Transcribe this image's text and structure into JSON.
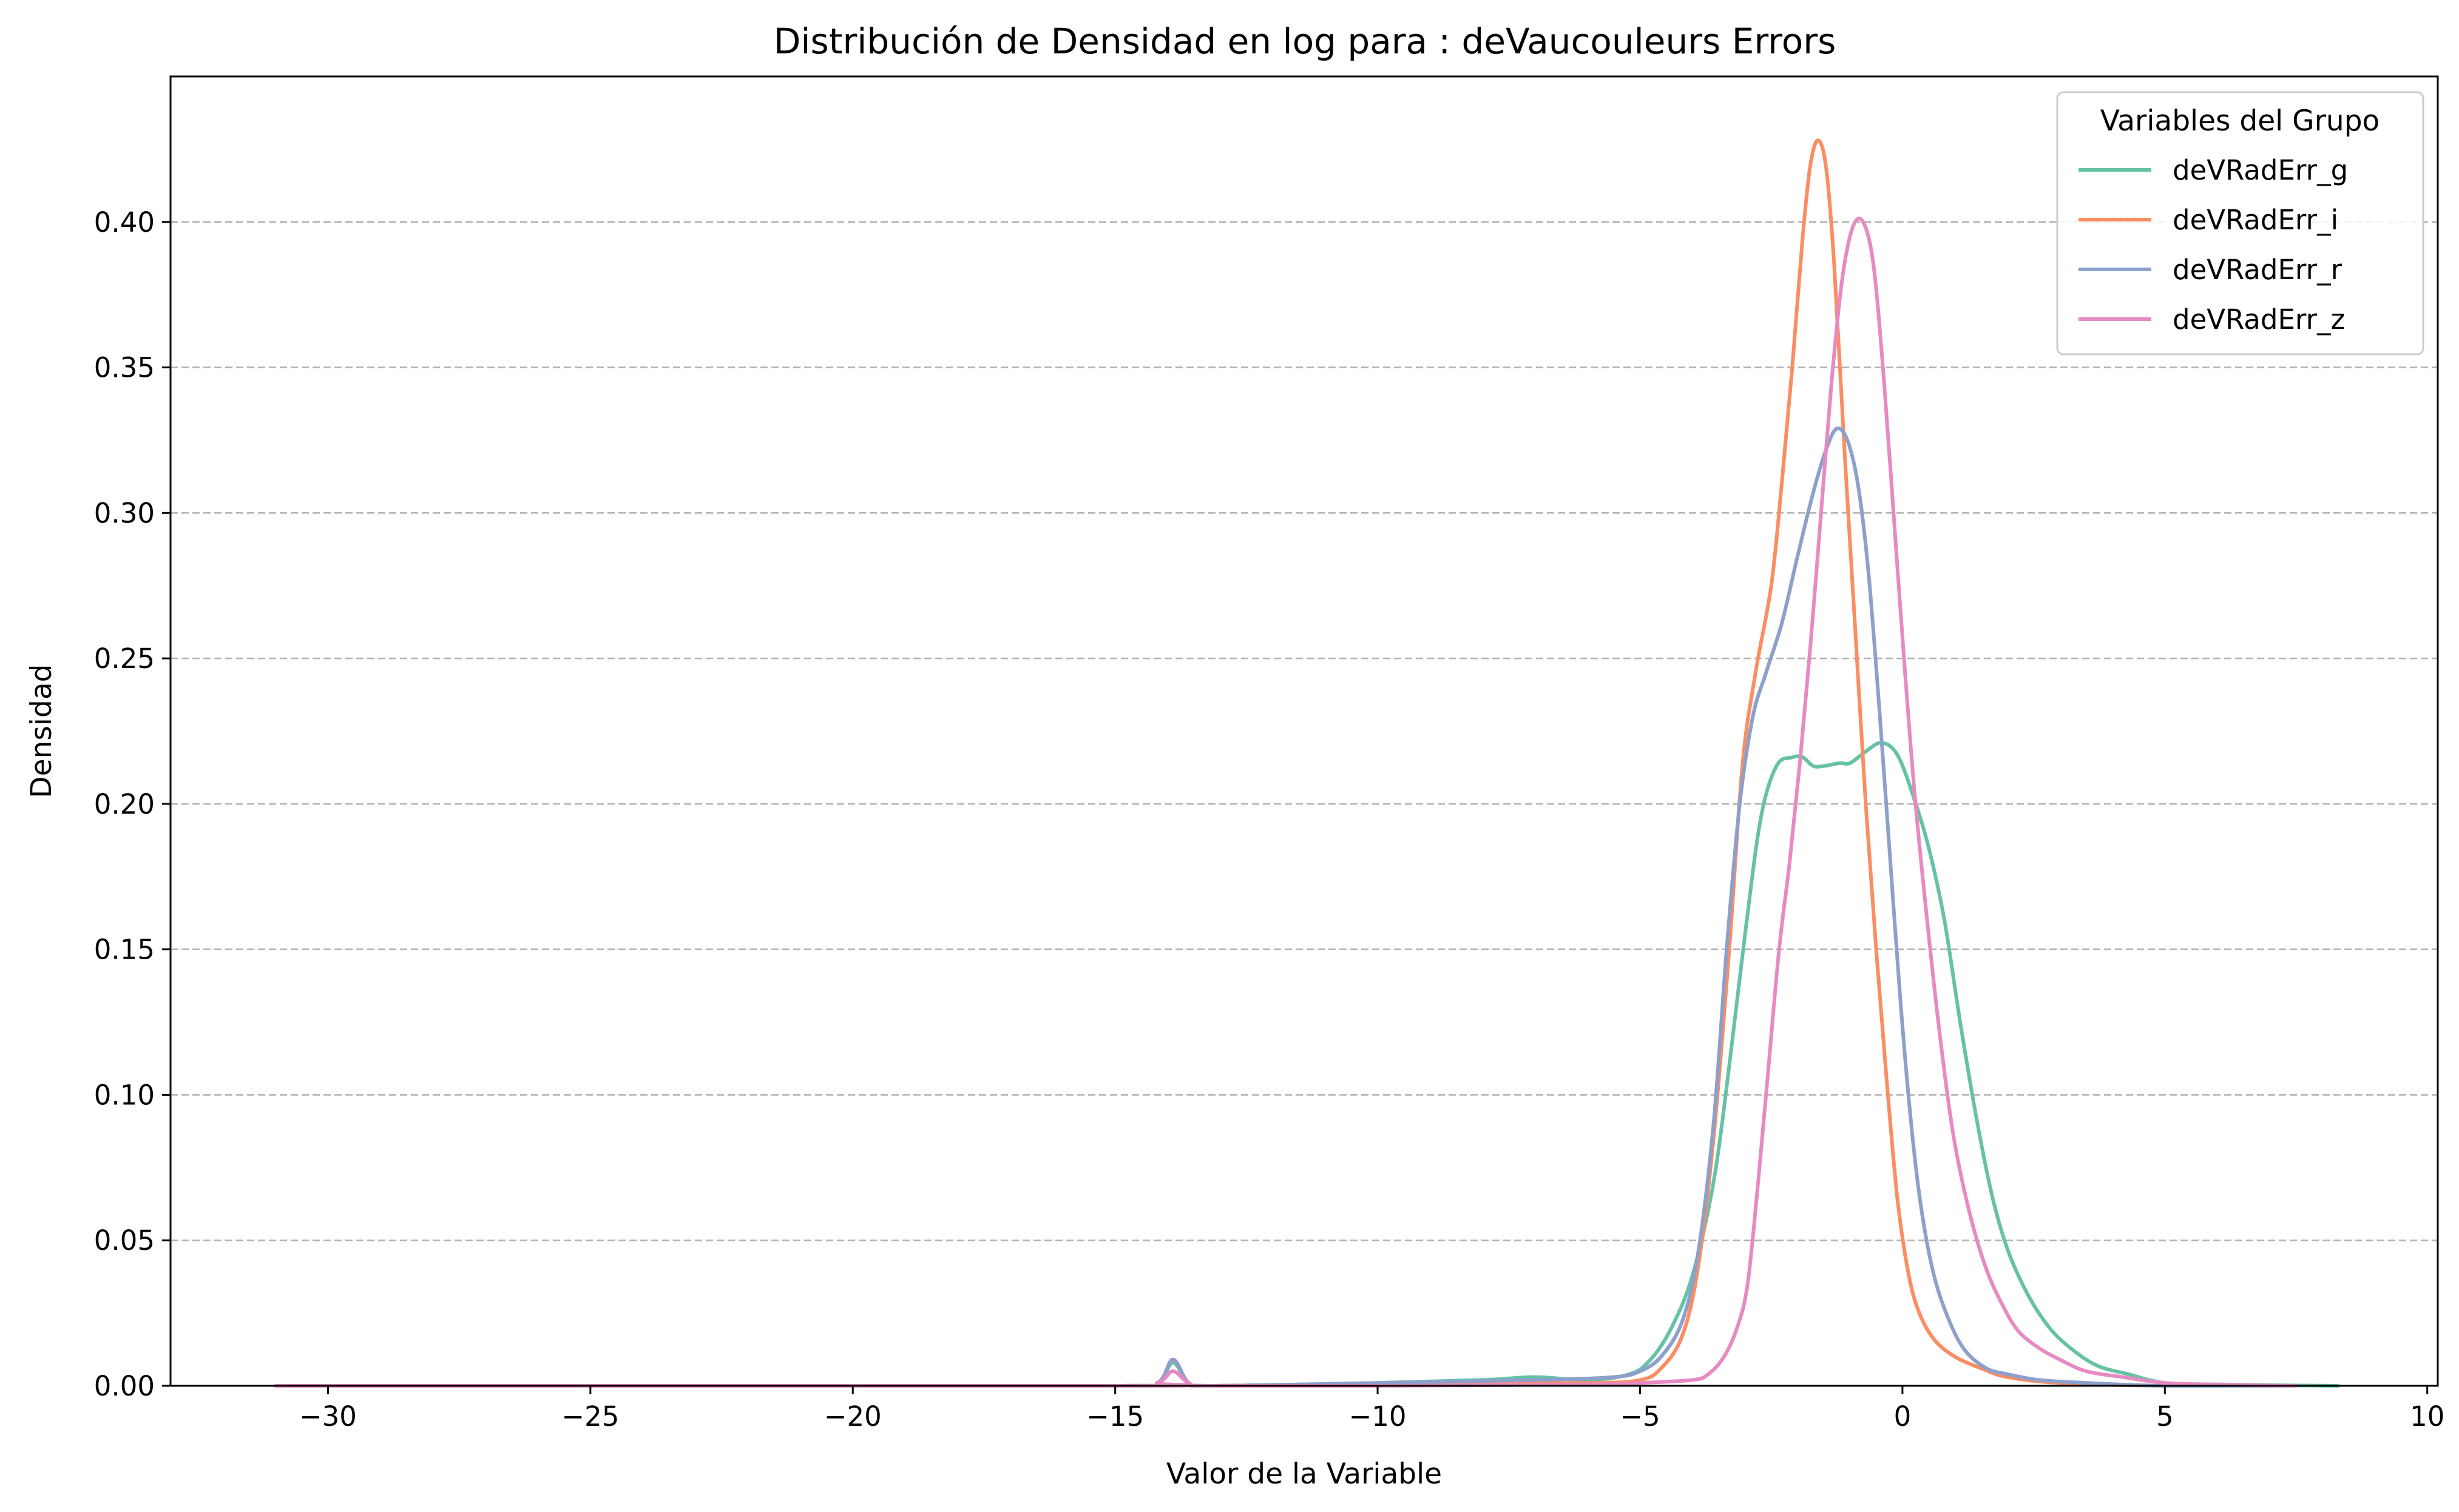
{
  "chart_data": {
    "type": "line",
    "title": "Distribución de Densidad en log para : deVaucouleurs Errors",
    "xlabel": "Valor de la Variable",
    "ylabel": "Densidad",
    "xlim": [
      -33,
      10.2
    ],
    "ylim": [
      0,
      0.45
    ],
    "x_ticks": [
      -30,
      -25,
      -20,
      -15,
      -10,
      -5,
      0,
      5,
      10
    ],
    "x_tick_labels": [
      "−30",
      "−25",
      "−20",
      "−15",
      "−10",
      "−5",
      "0",
      "5",
      "10"
    ],
    "y_ticks": [
      0,
      0.05,
      0.1,
      0.15,
      0.2,
      0.25,
      0.3,
      0.35,
      0.4
    ],
    "y_tick_labels": [
      "0.00",
      "0.05",
      "0.10",
      "0.15",
      "0.20",
      "0.25",
      "0.30",
      "0.35",
      "0.40"
    ],
    "grid": "y-dashed",
    "legend": {
      "title": "Variables del Grupo",
      "placement": "top-right"
    },
    "series": [
      {
        "name": "deVRadErr_g",
        "color": "#66c2a5",
        "points": [
          [
            -31,
            0
          ],
          [
            -15,
            0
          ],
          [
            -14.2,
            0.001
          ],
          [
            -13.9,
            0.008
          ],
          [
            -13.6,
            0.001
          ],
          [
            -13.2,
            0
          ],
          [
            -10,
            0.001
          ],
          [
            -8,
            0.002
          ],
          [
            -7,
            0.003
          ],
          [
            -6,
            0.002
          ],
          [
            -5.2,
            0.004
          ],
          [
            -4.8,
            0.009
          ],
          [
            -4.4,
            0.02
          ],
          [
            -4,
            0.038
          ],
          [
            -3.6,
            0.07
          ],
          [
            -3.3,
            0.11
          ],
          [
            -3,
            0.155
          ],
          [
            -2.7,
            0.195
          ],
          [
            -2.4,
            0.213
          ],
          [
            -2.1,
            0.216
          ],
          [
            -1.9,
            0.216
          ],
          [
            -1.7,
            0.213
          ],
          [
            -1.5,
            0.213
          ],
          [
            -1.2,
            0.214
          ],
          [
            -1,
            0.214
          ],
          [
            -0.7,
            0.218
          ],
          [
            -0.4,
            0.221
          ],
          [
            -0.1,
            0.217
          ],
          [
            0.2,
            0.203
          ],
          [
            0.5,
            0.185
          ],
          [
            0.8,
            0.16
          ],
          [
            1.1,
            0.125
          ],
          [
            1.4,
            0.093
          ],
          [
            1.7,
            0.066
          ],
          [
            2,
            0.047
          ],
          [
            2.4,
            0.031
          ],
          [
            2.8,
            0.02
          ],
          [
            3.2,
            0.013
          ],
          [
            3.7,
            0.007
          ],
          [
            4.3,
            0.004
          ],
          [
            5,
            0.001
          ],
          [
            6,
            0.0005
          ],
          [
            7,
            0.0002
          ],
          [
            8.3,
            0
          ]
        ]
      },
      {
        "name": "deVRadErr_i",
        "color": "#fc8d62",
        "points": [
          [
            -31,
            0
          ],
          [
            -15,
            0
          ],
          [
            -14.2,
            0.001
          ],
          [
            -13.9,
            0.009
          ],
          [
            -13.6,
            0.001
          ],
          [
            -13.2,
            0
          ],
          [
            -10,
            0.0005
          ],
          [
            -6,
            0.001
          ],
          [
            -5,
            0.002
          ],
          [
            -4.6,
            0.006
          ],
          [
            -4.2,
            0.017
          ],
          [
            -3.9,
            0.04
          ],
          [
            -3.6,
            0.085
          ],
          [
            -3.3,
            0.15
          ],
          [
            -3.05,
            0.213
          ],
          [
            -2.8,
            0.245
          ],
          [
            -2.5,
            0.275
          ],
          [
            -2.3,
            0.31
          ],
          [
            -2.1,
            0.35
          ],
          [
            -1.9,
            0.395
          ],
          [
            -1.75,
            0.42
          ],
          [
            -1.6,
            0.428
          ],
          [
            -1.45,
            0.418
          ],
          [
            -1.3,
            0.385
          ],
          [
            -1.1,
            0.32
          ],
          [
            -0.9,
            0.26
          ],
          [
            -0.7,
            0.2
          ],
          [
            -0.5,
            0.15
          ],
          [
            -0.3,
            0.105
          ],
          [
            -0.1,
            0.065
          ],
          [
            0.1,
            0.04
          ],
          [
            0.3,
            0.026
          ],
          [
            0.6,
            0.016
          ],
          [
            1,
            0.01
          ],
          [
            1.5,
            0.006
          ],
          [
            2,
            0.003
          ],
          [
            3,
            0.001
          ],
          [
            5,
            0
          ],
          [
            7.5,
            0
          ]
        ]
      },
      {
        "name": "deVRadErr_r",
        "color": "#8da0cb",
        "points": [
          [
            -31,
            0
          ],
          [
            -15,
            0
          ],
          [
            -14.2,
            0.001
          ],
          [
            -13.9,
            0.009
          ],
          [
            -13.6,
            0.001
          ],
          [
            -13.2,
            0
          ],
          [
            -10,
            0.001
          ],
          [
            -7,
            0.002
          ],
          [
            -5.5,
            0.003
          ],
          [
            -5,
            0.005
          ],
          [
            -4.6,
            0.01
          ],
          [
            -4.2,
            0.022
          ],
          [
            -3.9,
            0.045
          ],
          [
            -3.6,
            0.09
          ],
          [
            -3.35,
            0.15
          ],
          [
            -3.1,
            0.2
          ],
          [
            -2.85,
            0.23
          ],
          [
            -2.6,
            0.245
          ],
          [
            -2.3,
            0.262
          ],
          [
            -2,
            0.285
          ],
          [
            -1.7,
            0.307
          ],
          [
            -1.45,
            0.322
          ],
          [
            -1.25,
            0.329
          ],
          [
            -1.05,
            0.325
          ],
          [
            -0.85,
            0.31
          ],
          [
            -0.65,
            0.28
          ],
          [
            -0.45,
            0.235
          ],
          [
            -0.25,
            0.185
          ],
          [
            -0.05,
            0.135
          ],
          [
            0.15,
            0.093
          ],
          [
            0.35,
            0.062
          ],
          [
            0.6,
            0.038
          ],
          [
            0.9,
            0.022
          ],
          [
            1.2,
            0.012
          ],
          [
            1.6,
            0.006
          ],
          [
            2,
            0.004
          ],
          [
            2.6,
            0.002
          ],
          [
            3.5,
            0.001
          ],
          [
            5,
            0
          ],
          [
            7.5,
            0
          ]
        ]
      },
      {
        "name": "deVRadErr_z",
        "color": "#e78ac3",
        "points": [
          [
            -31,
            0
          ],
          [
            -15,
            0
          ],
          [
            -14.2,
            0.001
          ],
          [
            -13.9,
            0.005
          ],
          [
            -13.6,
            0.001
          ],
          [
            -13.2,
            0
          ],
          [
            -10,
            0
          ],
          [
            -6,
            0.0005
          ],
          [
            -5,
            0.001
          ],
          [
            -4,
            0.002
          ],
          [
            -3.7,
            0.004
          ],
          [
            -3.4,
            0.01
          ],
          [
            -3.15,
            0.02
          ],
          [
            -2.95,
            0.035
          ],
          [
            -2.75,
            0.07
          ],
          [
            -2.55,
            0.11
          ],
          [
            -2.35,
            0.15
          ],
          [
            -2.15,
            0.18
          ],
          [
            -1.95,
            0.215
          ],
          [
            -1.75,
            0.255
          ],
          [
            -1.55,
            0.3
          ],
          [
            -1.35,
            0.345
          ],
          [
            -1.15,
            0.38
          ],
          [
            -0.95,
            0.398
          ],
          [
            -0.75,
            0.4
          ],
          [
            -0.55,
            0.385
          ],
          [
            -0.35,
            0.345
          ],
          [
            -0.15,
            0.295
          ],
          [
            0.05,
            0.245
          ],
          [
            0.25,
            0.2
          ],
          [
            0.5,
            0.155
          ],
          [
            0.75,
            0.115
          ],
          [
            1,
            0.083
          ],
          [
            1.3,
            0.058
          ],
          [
            1.6,
            0.04
          ],
          [
            1.9,
            0.028
          ],
          [
            2.2,
            0.019
          ],
          [
            2.6,
            0.013
          ],
          [
            3,
            0.009
          ],
          [
            3.5,
            0.005
          ],
          [
            4.2,
            0.003
          ],
          [
            5,
            0.001
          ],
          [
            6,
            0.0004
          ],
          [
            7.5,
            0
          ]
        ]
      }
    ]
  }
}
